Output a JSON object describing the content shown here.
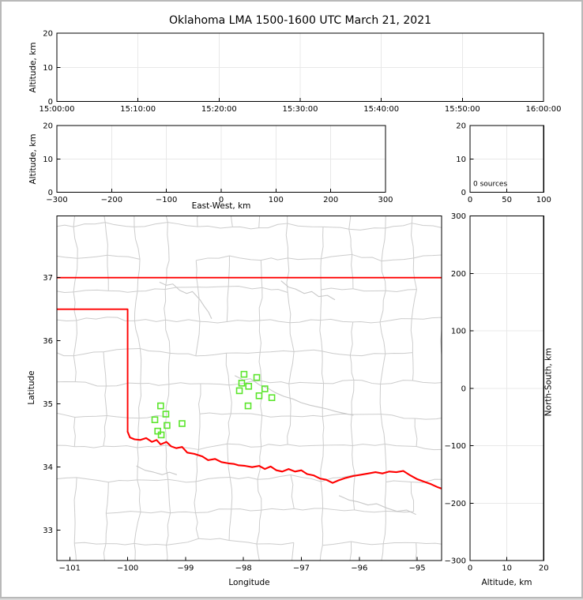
{
  "figure": {
    "title": "Oklahoma LMA 1500-1600 UTC March 21, 2021",
    "background": "#ffffff",
    "frame_color": "#b9b9b9"
  },
  "colors": {
    "axis": "#000000",
    "grid": "#e8e8e8",
    "county": "#cccccc",
    "river": "#c8c8c8",
    "state_border": "#ff0000",
    "station": "#5be52c",
    "text": "#000000"
  },
  "chart_data": [
    {
      "id": "time_height",
      "type": "scatter",
      "title": "Oklahoma LMA 1500-1600 UTC March 21, 2021",
      "ylabel": "Altitude, km",
      "xlim": [
        0,
        6
      ],
      "ylim": [
        0,
        20
      ],
      "xticks": [
        0,
        1,
        2,
        3,
        4,
        5,
        6
      ],
      "xtick_labels": [
        "15:00:00",
        "15:10:00",
        "15:20:00",
        "15:30:00",
        "15:40:00",
        "15:50:00",
        "16:00:00"
      ],
      "yticks": [
        0,
        10,
        20
      ],
      "ytick_labels": [
        "0",
        "10",
        "20"
      ],
      "grid": true,
      "points": []
    },
    {
      "id": "ew_height",
      "type": "scatter",
      "xlabel": "East-West, km",
      "ylabel": "Altitude, km",
      "xlim": [
        -300,
        300
      ],
      "ylim": [
        0,
        20
      ],
      "xticks": [
        -300,
        -200,
        -100,
        0,
        100,
        200,
        300
      ],
      "xtick_labels": [
        "−300",
        "−200",
        "−100",
        "0",
        "100",
        "200",
        "300"
      ],
      "yticks": [
        0,
        10,
        20
      ],
      "ytick_labels": [
        "0",
        "10",
        "20"
      ],
      "grid": true,
      "points": []
    },
    {
      "id": "alt_histogram",
      "type": "histogram",
      "annotation": "0 sources",
      "xlim": [
        0,
        100
      ],
      "ylim": [
        0,
        20
      ],
      "xticks": [
        0,
        50,
        100
      ],
      "xtick_labels": [
        "0",
        "50",
        "100"
      ],
      "yticks": [
        0,
        10,
        20
      ],
      "ytick_labels": [
        "0",
        "10",
        "20"
      ],
      "grid": true,
      "values": []
    },
    {
      "id": "plan_map",
      "type": "scatter",
      "xlabel": "Longitude",
      "ylabel": "Latitude",
      "xlim": [
        -101.222,
        -94.578
      ],
      "ylim": [
        32.521,
        37.978
      ],
      "xticks": [
        -101,
        -100,
        -99,
        -98,
        -97,
        -96,
        -95
      ],
      "xtick_labels": [
        "−101",
        "−100",
        "−99",
        "−98",
        "−97",
        "−96",
        "−95"
      ],
      "yticks": [
        37,
        36,
        35,
        34,
        33
      ],
      "ytick_labels": [
        "37",
        "36",
        "35",
        "34",
        "33"
      ],
      "grid": false,
      "marker": "open-square",
      "marker_color": "#5be52c",
      "stations": [
        [
          -97.99,
          35.47
        ],
        [
          -97.77,
          35.42
        ],
        [
          -98.03,
          35.33
        ],
        [
          -97.91,
          35.28
        ],
        [
          -98.07,
          35.21
        ],
        [
          -97.63,
          35.24
        ],
        [
          -97.73,
          35.13
        ],
        [
          -97.51,
          35.1
        ],
        [
          -97.92,
          34.97
        ],
        [
          -99.43,
          34.97
        ],
        [
          -99.34,
          34.84
        ],
        [
          -99.53,
          34.75
        ],
        [
          -99.32,
          34.66
        ],
        [
          -99.06,
          34.69
        ],
        [
          -99.48,
          34.57
        ],
        [
          -99.42,
          34.51
        ]
      ],
      "points": []
    },
    {
      "id": "ns_height",
      "type": "scatter",
      "xlabel": "Altitude, km",
      "ylabel": "North-South, km",
      "xlim": [
        0,
        20
      ],
      "ylim": [
        -300,
        300
      ],
      "xticks": [
        0,
        10,
        20
      ],
      "xtick_labels": [
        "0",
        "10",
        "20"
      ],
      "yticks": [
        300,
        200,
        100,
        0,
        -100,
        -200,
        -300
      ],
      "ytick_labels": [
        "300",
        "200",
        "100",
        "0",
        "−100",
        "−200",
        "−300"
      ],
      "grid": true,
      "points": []
    }
  ],
  "map_layers": {
    "state_borders": [
      [
        [
          -101.222,
          37.0
        ],
        [
          -94.578,
          37.0
        ]
      ],
      [
        [
          -101.222,
          36.5
        ],
        [
          -100.0,
          36.5
        ],
        [
          -100.0,
          34.56
        ]
      ]
    ],
    "red_river": [
      [
        -100.0,
        34.56
      ],
      [
        -99.96,
        34.47
      ],
      [
        -99.88,
        34.44
      ],
      [
        -99.78,
        34.43
      ],
      [
        -99.68,
        34.46
      ],
      [
        -99.58,
        34.4
      ],
      [
        -99.5,
        34.43
      ],
      [
        -99.43,
        34.36
      ],
      [
        -99.33,
        34.4
      ],
      [
        -99.25,
        34.33
      ],
      [
        -99.16,
        34.3
      ],
      [
        -99.06,
        34.32
      ],
      [
        -98.97,
        34.23
      ],
      [
        -98.85,
        34.21
      ],
      [
        -98.71,
        34.17
      ],
      [
        -98.61,
        34.11
      ],
      [
        -98.49,
        34.13
      ],
      [
        -98.38,
        34.08
      ],
      [
        -98.26,
        34.06
      ],
      [
        -98.16,
        34.05
      ],
      [
        -98.09,
        34.03
      ],
      [
        -97.97,
        34.02
      ],
      [
        -97.85,
        34.0
      ],
      [
        -97.73,
        34.02
      ],
      [
        -97.63,
        33.97
      ],
      [
        -97.53,
        34.01
      ],
      [
        -97.43,
        33.95
      ],
      [
        -97.33,
        33.93
      ],
      [
        -97.22,
        33.97
      ],
      [
        -97.11,
        33.93
      ],
      [
        -97.0,
        33.95
      ],
      [
        -96.9,
        33.89
      ],
      [
        -96.79,
        33.87
      ],
      [
        -96.68,
        33.82
      ],
      [
        -96.57,
        33.8
      ],
      [
        -96.46,
        33.75
      ],
      [
        -96.36,
        33.79
      ],
      [
        -96.23,
        33.83
      ],
      [
        -96.1,
        33.86
      ],
      [
        -95.97,
        33.88
      ],
      [
        -95.84,
        33.9
      ],
      [
        -95.72,
        33.92
      ],
      [
        -95.6,
        33.9
      ],
      [
        -95.48,
        33.93
      ],
      [
        -95.36,
        33.92
      ],
      [
        -95.24,
        33.94
      ],
      [
        -95.12,
        33.87
      ],
      [
        -95.0,
        33.81
      ],
      [
        -94.88,
        33.77
      ],
      [
        -94.76,
        33.73
      ],
      [
        -94.64,
        33.68
      ],
      [
        -94.578,
        33.66
      ]
    ],
    "rivers": [
      [
        [
          -99.45,
          36.93
        ],
        [
          -99.33,
          36.88
        ],
        [
          -99.22,
          36.9
        ],
        [
          -99.1,
          36.8
        ],
        [
          -98.98,
          36.75
        ],
        [
          -98.88,
          36.78
        ],
        [
          -98.75,
          36.65
        ],
        [
          -98.68,
          36.55
        ],
        [
          -98.6,
          36.45
        ],
        [
          -98.55,
          36.35
        ]
      ],
      [
        [
          -97.35,
          36.95
        ],
        [
          -97.22,
          36.85
        ],
        [
          -97.1,
          36.82
        ],
        [
          -96.95,
          36.75
        ],
        [
          -96.82,
          36.78
        ],
        [
          -96.7,
          36.7
        ],
        [
          -96.55,
          36.72
        ],
        [
          -96.42,
          36.65
        ]
      ],
      [
        [
          -98.15,
          35.45
        ],
        [
          -98.0,
          35.38
        ],
        [
          -97.88,
          35.4
        ],
        [
          -97.72,
          35.3
        ],
        [
          -97.58,
          35.25
        ],
        [
          -97.45,
          35.18
        ],
        [
          -97.3,
          35.12
        ],
        [
          -97.15,
          35.08
        ],
        [
          -97.0,
          35.02
        ],
        [
          -96.85,
          34.98
        ],
        [
          -96.7,
          34.95
        ],
        [
          -96.55,
          34.92
        ],
        [
          -96.4,
          34.88
        ],
        [
          -96.25,
          34.85
        ],
        [
          -96.1,
          34.82
        ]
      ],
      [
        [
          -99.85,
          34.02
        ],
        [
          -99.7,
          33.95
        ],
        [
          -99.55,
          33.92
        ],
        [
          -99.4,
          33.88
        ],
        [
          -99.28,
          33.92
        ],
        [
          -99.15,
          33.88
        ]
      ],
      [
        [
          -96.35,
          33.55
        ],
        [
          -96.18,
          33.48
        ],
        [
          -96.02,
          33.45
        ],
        [
          -95.85,
          33.4
        ],
        [
          -95.7,
          33.42
        ],
        [
          -95.52,
          33.35
        ],
        [
          -95.35,
          33.3
        ],
        [
          -95.18,
          33.32
        ],
        [
          -95.02,
          33.25
        ]
      ]
    ],
    "county_grid": {
      "seed": 12,
      "lon_step": 0.53,
      "lat_step": 0.5,
      "jitter": 0.12,
      "keep_prob": 0.88,
      "wiggle": 0.05
    }
  }
}
